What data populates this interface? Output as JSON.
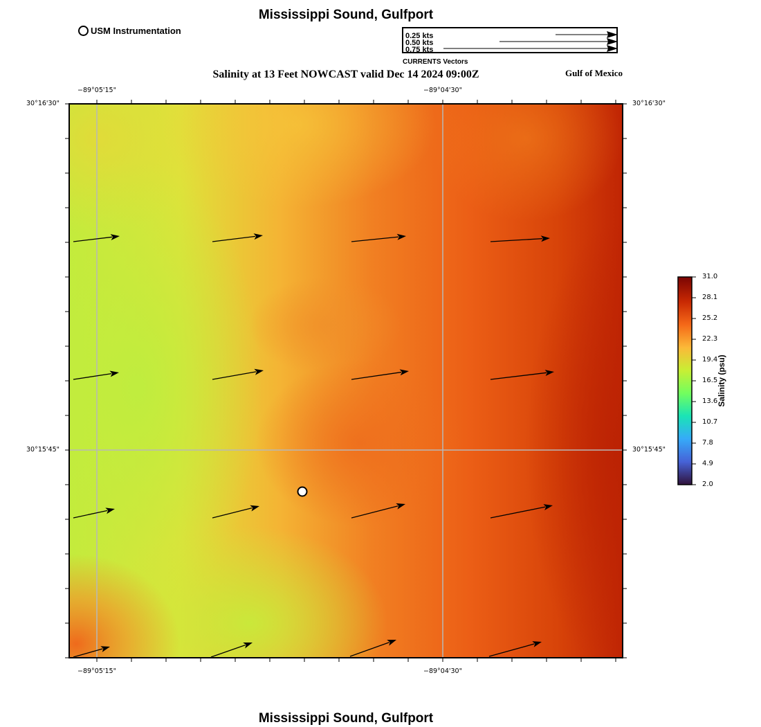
{
  "header": {
    "title": "Mississippi Sound, Gulfport",
    "subtitle": "Salinity at 13 Feet NOWCAST valid Dec 14 2024 09:00Z",
    "region": "Gulf of Mexico"
  },
  "footer": {
    "title": "Mississippi Sound, Gulfport"
  },
  "station_legend": {
    "label": "USM Instrumentation"
  },
  "vector_legend": {
    "caption": "CURRENTS Vectors",
    "entries": [
      {
        "label": "0.25 kts",
        "speed": 0.25
      },
      {
        "label": "0.50 kts",
        "speed": 0.5
      },
      {
        "label": "0.75 kts",
        "speed": 0.75
      }
    ]
  },
  "map": {
    "lon_labels": [
      "−89°05'15\"",
      "−89°04'30\""
    ],
    "lat_labels": [
      "30°16'30\"",
      "30°15'45\""
    ],
    "station": {
      "name": "USM Instrumentation"
    }
  },
  "colorbar": {
    "title": "Salinity (psu)",
    "min": 2.0,
    "max": 31.0,
    "ticks": [
      "31.0",
      "28.1",
      "25.2",
      "22.3",
      "19.4",
      "16.5",
      "13.6",
      "10.7",
      "7.8",
      "4.9",
      "2.0"
    ],
    "colors": [
      "#30123b",
      "#4662d7",
      "#36aaf9",
      "#1ae4b6",
      "#72fe5e",
      "#c8ef34",
      "#fbb938",
      "#f56918",
      "#c92903",
      "#7a0403"
    ]
  },
  "colors": {
    "grid": "#b8b8b8",
    "fresh": "#c6ea3c",
    "mid": "#f3ab33",
    "salty": "#c42a05"
  }
}
